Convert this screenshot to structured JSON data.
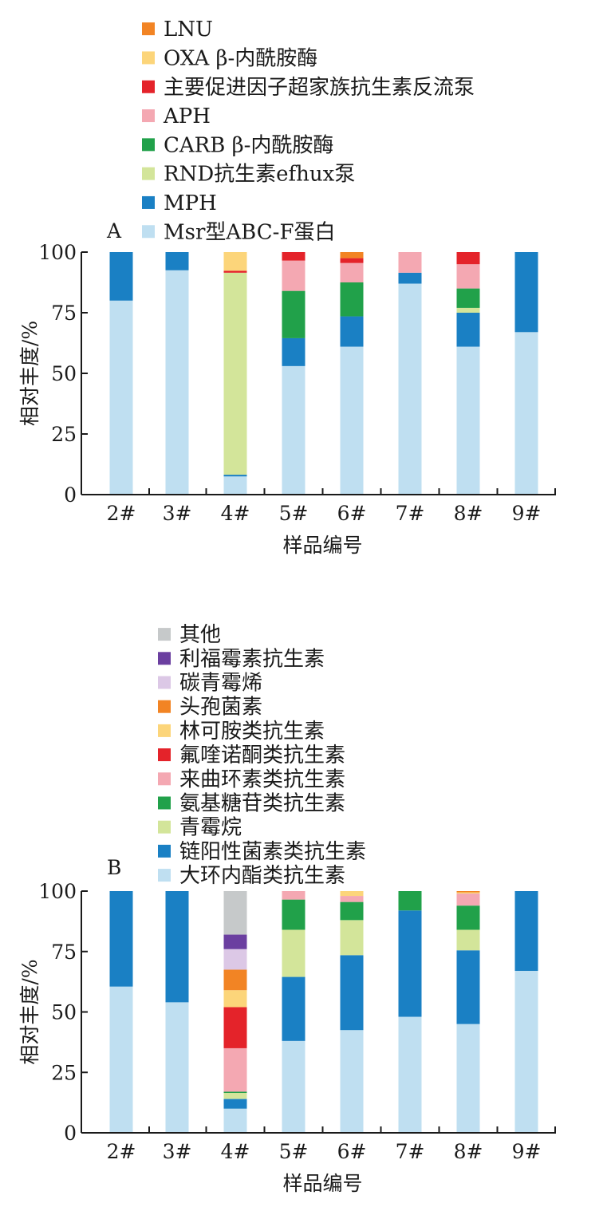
{
  "chart_data": [
    {
      "type": "bar",
      "stacked": true,
      "panel_label": "A",
      "categories": [
        "2#",
        "3#",
        "4#",
        "5#",
        "6#",
        "7#",
        "8#",
        "9#"
      ],
      "xlabel": "样品编号",
      "ylabel": "相对丰度/%",
      "ylim": [
        0,
        100
      ],
      "yticks": [
        "0",
        "25",
        "50",
        "75",
        "100"
      ],
      "legend_position": "top-left",
      "series": [
        {
          "name": "Msr型ABC-F蛋白",
          "color": "#bfdff1",
          "values": [
            80,
            92.5,
            7.5,
            53,
            61,
            87,
            61,
            67
          ]
        },
        {
          "name": "MPH",
          "color": "#1a80c4",
          "values": [
            20,
            7.5,
            0.7,
            11.5,
            12.5,
            4.5,
            14,
            33
          ]
        },
        {
          "name": "RND抗生素efhux泵",
          "color": "#d3e59a",
          "values": [
            0,
            0,
            83.3,
            0,
            0,
            0,
            2,
            0
          ]
        },
        {
          "name": "CARB β-内酰胺酶",
          "color": "#21a14a",
          "values": [
            0,
            0,
            0,
            19.5,
            14,
            0,
            8,
            0
          ]
        },
        {
          "name": "APH",
          "color": "#f4a8b2",
          "values": [
            0,
            0,
            0,
            12.5,
            8,
            8.5,
            10,
            0
          ]
        },
        {
          "name": "主要促进因子超家族抗生素反流泵",
          "color": "#e4232a",
          "values": [
            0,
            0,
            0.8,
            3.5,
            2,
            0,
            5,
            0
          ]
        },
        {
          "name": "OXA β-内酰胺酶",
          "color": "#fcd57a",
          "values": [
            0,
            0,
            7.7,
            0,
            0,
            0,
            0,
            0
          ]
        },
        {
          "name": "LNU",
          "color": "#f28424",
          "values": [
            0,
            0,
            0,
            0,
            2.5,
            0,
            0,
            0
          ]
        }
      ]
    },
    {
      "type": "bar",
      "stacked": true,
      "panel_label": "B",
      "categories": [
        "2#",
        "3#",
        "4#",
        "5#",
        "6#",
        "7#",
        "8#",
        "9#"
      ],
      "xlabel": "样品编号",
      "ylabel": "相对丰度/%",
      "ylim": [
        0,
        100
      ],
      "yticks": [
        "0",
        "25",
        "50",
        "75",
        "100"
      ],
      "legend_position": "top-left",
      "series": [
        {
          "name": "大环内酯类抗生素",
          "color": "#bfdff1",
          "values": [
            60.5,
            54,
            10,
            38,
            42.5,
            48,
            45,
            67
          ]
        },
        {
          "name": "链阳性菌素类抗生素",
          "color": "#1a80c4",
          "values": [
            39.5,
            46,
            4,
            26.5,
            31,
            44,
            30.5,
            33
          ]
        },
        {
          "name": "青霉烷",
          "color": "#d3e59a",
          "values": [
            0,
            0,
            2.5,
            19.5,
            14.5,
            0,
            8.5,
            0
          ]
        },
        {
          "name": "氨基糖苷类抗生素",
          "color": "#21a14a",
          "values": [
            0,
            0,
            0.5,
            12.5,
            7.5,
            8,
            10,
            0
          ]
        },
        {
          "name": "来曲环素类抗生素",
          "color": "#f4a8b2",
          "values": [
            0,
            0,
            18,
            3.5,
            2.5,
            0,
            5,
            0
          ]
        },
        {
          "name": "氟喹诺酮类抗生素",
          "color": "#e4232a",
          "values": [
            0,
            0,
            17,
            0,
            0,
            0,
            0,
            0
          ]
        },
        {
          "name": "林可胺类抗生素",
          "color": "#fcd57a",
          "values": [
            0,
            0,
            7,
            0,
            2,
            0,
            0.5,
            0
          ]
        },
        {
          "name": "头孢菌素",
          "color": "#f28424",
          "values": [
            0,
            0,
            8.5,
            0,
            0,
            0,
            0.5,
            0
          ]
        },
        {
          "name": "碳青霉烯",
          "color": "#dcc8e6",
          "values": [
            0,
            0,
            8.5,
            0,
            0,
            0,
            0,
            0
          ]
        },
        {
          "name": "利福霉素抗生素",
          "color": "#6b3fa0",
          "values": [
            0,
            0,
            6,
            0,
            0,
            0,
            0,
            0
          ]
        },
        {
          "name": "其他",
          "color": "#c6c9ca",
          "values": [
            0,
            0,
            18,
            0,
            0,
            0,
            0,
            0
          ]
        }
      ]
    }
  ]
}
